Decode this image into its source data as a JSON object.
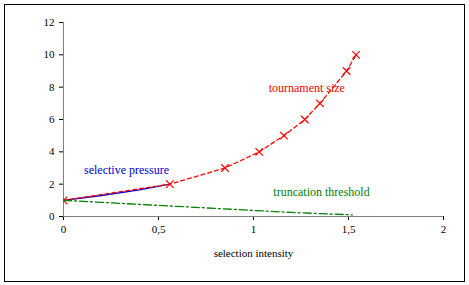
{
  "chart_data": {
    "type": "line",
    "x_label": "selection intensity",
    "xlim": [
      0,
      2
    ],
    "xticks": [
      0,
      {
        "value": 0.5,
        "label": "0,5"
      },
      1,
      {
        "value": 1.5,
        "label": "1,5"
      },
      2
    ],
    "ylim": [
      0,
      12
    ],
    "yticks": [
      0,
      2,
      4,
      6,
      8,
      10,
      12
    ],
    "grid": false,
    "series": [
      {
        "name": "selective pressure",
        "color": "#0000cc",
        "line_style": "solid",
        "marker": "none",
        "x": [
          0,
          0.2,
          0.4,
          0.56
        ],
        "values": [
          1,
          1.3,
          1.65,
          2
        ]
      },
      {
        "name": "tournament size",
        "color": "#ff0000",
        "line_style": "dashed",
        "marker": "x",
        "x": [
          0,
          0.56,
          0.85,
          1.03,
          1.16,
          1.27,
          1.35,
          1.49,
          1.54
        ],
        "values": [
          1,
          2,
          3,
          4,
          5,
          6,
          7,
          9,
          10
        ]
      },
      {
        "name": "truncation threshold",
        "color": "#008000",
        "line_style": "dashdot",
        "marker": "none",
        "x": [
          0,
          0.8,
          1.2,
          1.52
        ],
        "values": [
          1,
          0.5,
          0.25,
          0.1
        ]
      }
    ]
  }
}
